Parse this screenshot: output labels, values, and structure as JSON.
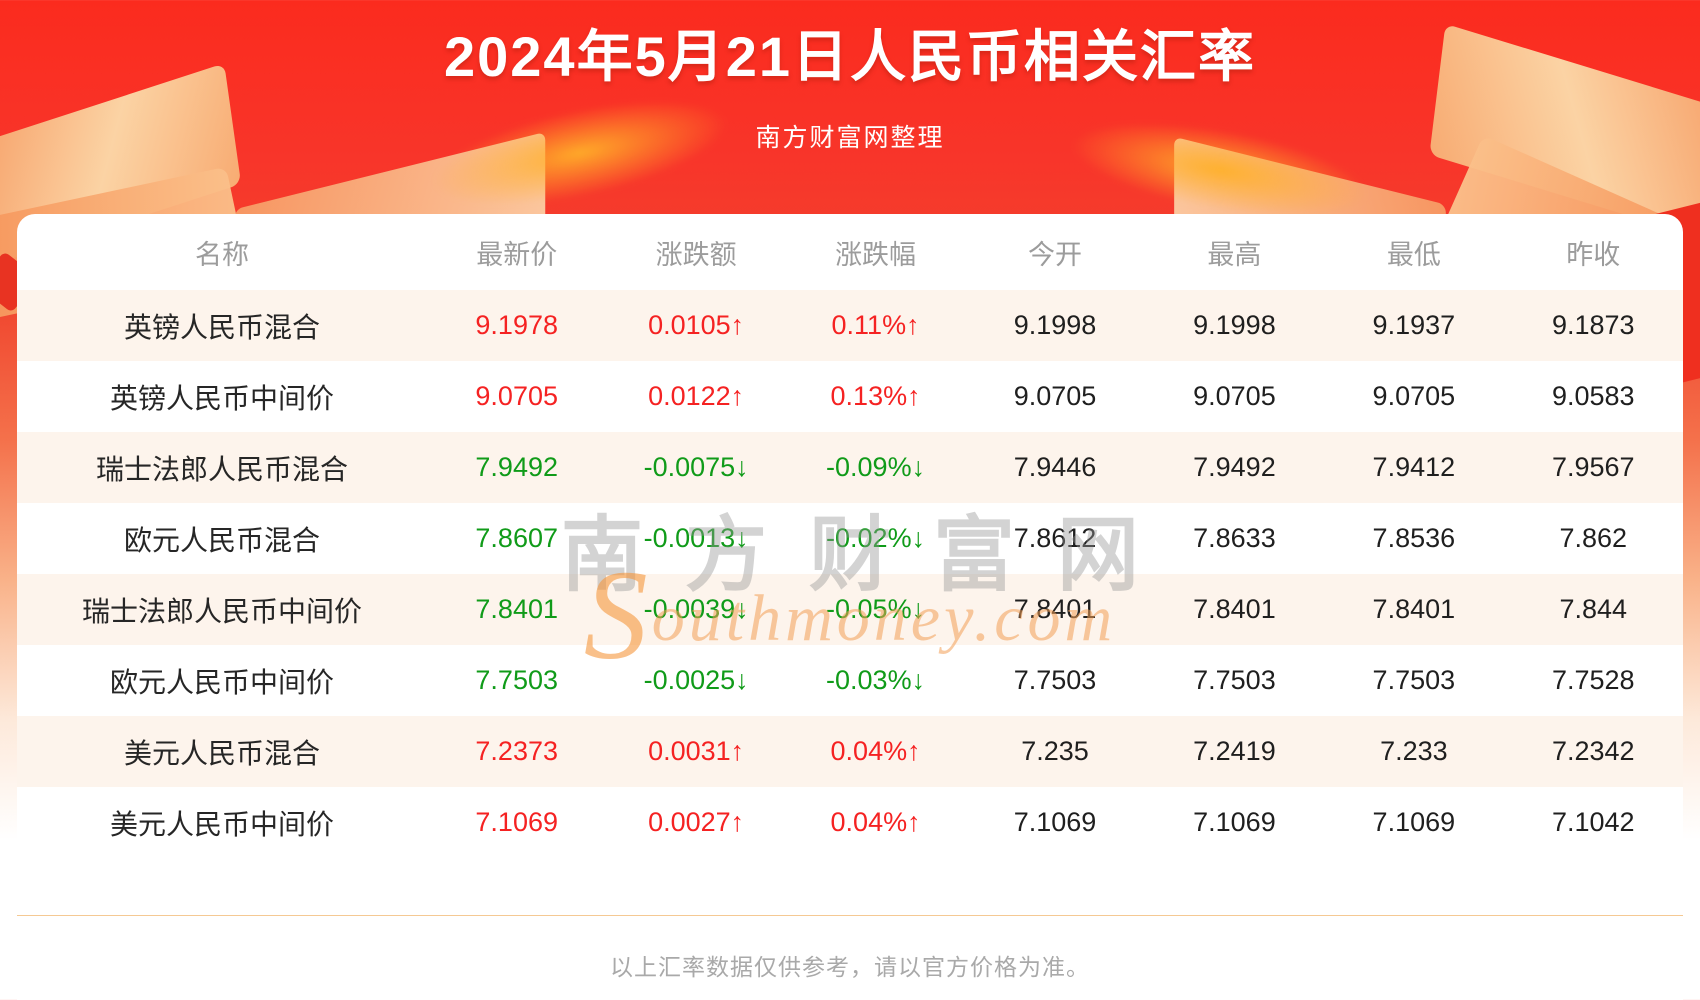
{
  "page": {
    "title": "2024年5月21日人民币相关汇率",
    "subtitle": "南方财富网整理"
  },
  "chart_data": {
    "type": "table",
    "title": "2024年5月21日人民币相关汇率",
    "columns": [
      "名称",
      "最新价",
      "涨跌额",
      "涨跌幅",
      "今开",
      "最高",
      "最低",
      "昨收"
    ],
    "rows": [
      {
        "name": "英镑人民币混合",
        "latest": "9.1978",
        "change": "0.0105↑",
        "change_pct": "0.11%↑",
        "open": "9.1998",
        "high": "9.1998",
        "low": "9.1937",
        "prev_close": "9.1873",
        "trend": "up"
      },
      {
        "name": "英镑人民币中间价",
        "latest": "9.0705",
        "change": "0.0122↑",
        "change_pct": "0.13%↑",
        "open": "9.0705",
        "high": "9.0705",
        "low": "9.0705",
        "prev_close": "9.0583",
        "trend": "up"
      },
      {
        "name": "瑞士法郎人民币混合",
        "latest": "7.9492",
        "change": "-0.0075↓",
        "change_pct": "-0.09%↓",
        "open": "7.9446",
        "high": "7.9492",
        "low": "7.9412",
        "prev_close": "7.9567",
        "trend": "down"
      },
      {
        "name": "欧元人民币混合",
        "latest": "7.8607",
        "change": "-0.0013↓",
        "change_pct": "-0.02%↓",
        "open": "7.8612",
        "high": "7.8633",
        "low": "7.8536",
        "prev_close": "7.862",
        "trend": "down"
      },
      {
        "name": "瑞士法郎人民币中间价",
        "latest": "7.8401",
        "change": "-0.0039↓",
        "change_pct": "-0.05%↓",
        "open": "7.8401",
        "high": "7.8401",
        "low": "7.8401",
        "prev_close": "7.844",
        "trend": "down"
      },
      {
        "name": "欧元人民币中间价",
        "latest": "7.7503",
        "change": "-0.0025↓",
        "change_pct": "-0.03%↓",
        "open": "7.7503",
        "high": "7.7503",
        "low": "7.7503",
        "prev_close": "7.7528",
        "trend": "down"
      },
      {
        "name": "美元人民币混合",
        "latest": "7.2373",
        "change": "0.0031↑",
        "change_pct": "0.04%↑",
        "open": "7.235",
        "high": "7.2419",
        "low": "7.233",
        "prev_close": "7.2342",
        "trend": "up"
      },
      {
        "name": "美元人民币中间价",
        "latest": "7.1069",
        "change": "0.0027↑",
        "change_pct": "0.04%↑",
        "open": "7.1069",
        "high": "7.1069",
        "low": "7.1069",
        "prev_close": "7.1042",
        "trend": "up"
      }
    ]
  },
  "watermark": {
    "cn": "南方财富网",
    "en_first": "S",
    "en_rest": "outhmoney.com"
  },
  "footer": {
    "disclaimer": "以上汇率数据仅供参考，请以官方价格为准。"
  },
  "colors": {
    "background_red": "#fb2b1e",
    "up": "#f52222",
    "down": "#109b19",
    "row_stripe": "#fdf4ec",
    "header_text": "#9c9c9c",
    "divider": "#f5c993",
    "title_text": "#ffffff"
  }
}
